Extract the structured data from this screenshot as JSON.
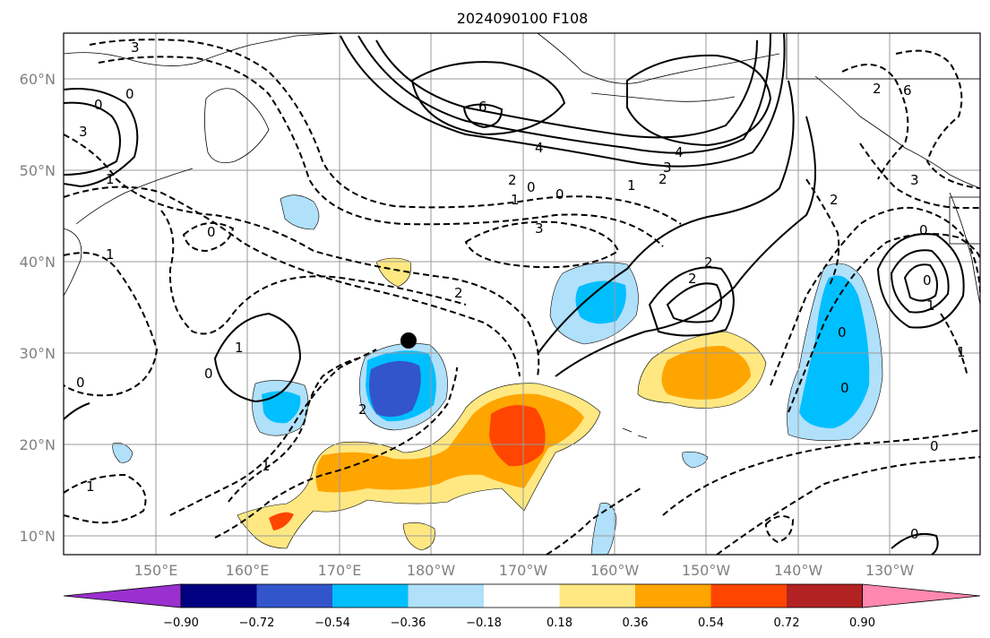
{
  "title": "2024090100 F108",
  "map": {
    "lat_labels": [
      "10°N",
      "20°N",
      "30°N",
      "40°N",
      "50°N",
      "60°N"
    ],
    "lon_labels": [
      "150°E",
      "160°E",
      "170°E",
      "180°W",
      "170°W",
      "160°W",
      "150°W",
      "140°W",
      "130°W"
    ],
    "contour_labels": [
      "3",
      "0",
      "0",
      "3",
      "1",
      "6",
      "6",
      "4",
      "4",
      "3",
      "2",
      "2",
      "1",
      "0",
      "0",
      "1",
      "3",
      "0",
      "1",
      "3",
      "2",
      "2",
      "2",
      "0",
      "0",
      "1",
      "2",
      "2",
      "1",
      "0",
      "0",
      "0",
      "0",
      "1",
      "1",
      "0",
      "0",
      "2",
      "1"
    ]
  },
  "colorbar": {
    "tick_labels": [
      "−0.90",
      "−0.72",
      "−0.54",
      "−0.36",
      "−0.18",
      "0.18",
      "0.36",
      "0.54",
      "0.72",
      "0.90"
    ],
    "colors": [
      "#9a30d0",
      "#000080",
      "#3355cc",
      "#00bfff",
      "#b0e0fa",
      "#ffffff",
      "#ffe882",
      "#ffa500",
      "#ff4500",
      "#b22222",
      "#ff88b0"
    ]
  },
  "marker": {
    "type": "filled-circle",
    "color": "#000000"
  }
}
